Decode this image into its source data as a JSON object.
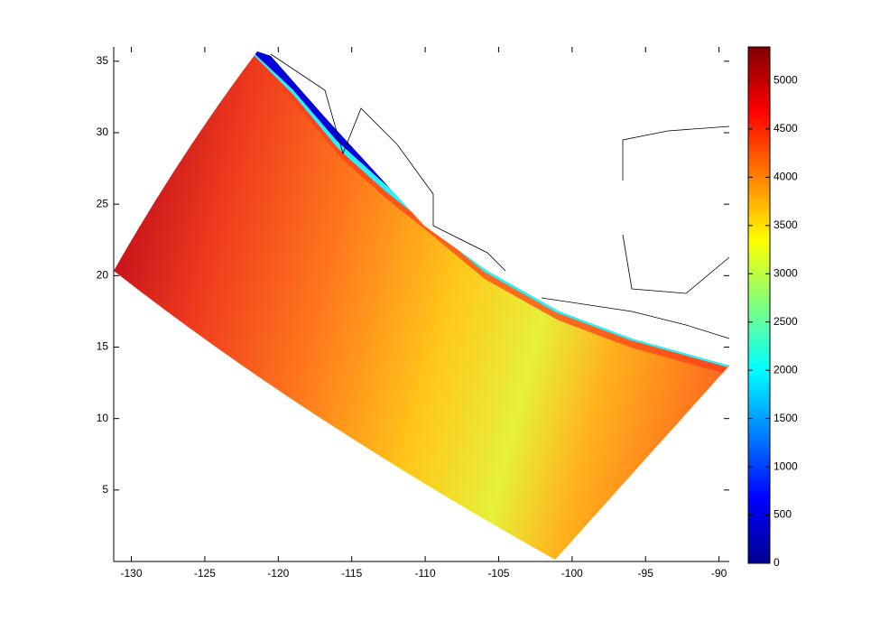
{
  "chart_data": {
    "type": "heatmap",
    "xlim": [
      -131.2,
      -89.3
    ],
    "ylim": [
      0,
      36
    ],
    "xticks": [
      -130,
      -125,
      -120,
      -115,
      -110,
      -105,
      -100,
      -95,
      -90
    ],
    "yticks": [
      5,
      10,
      15,
      20,
      25,
      30,
      35
    ],
    "colorbar": {
      "lim": [
        0,
        5350
      ],
      "ticks": [
        0,
        500,
        1000,
        1500,
        2000,
        2500,
        3000,
        3500,
        4000,
        4500,
        5000
      ]
    }
  }
}
